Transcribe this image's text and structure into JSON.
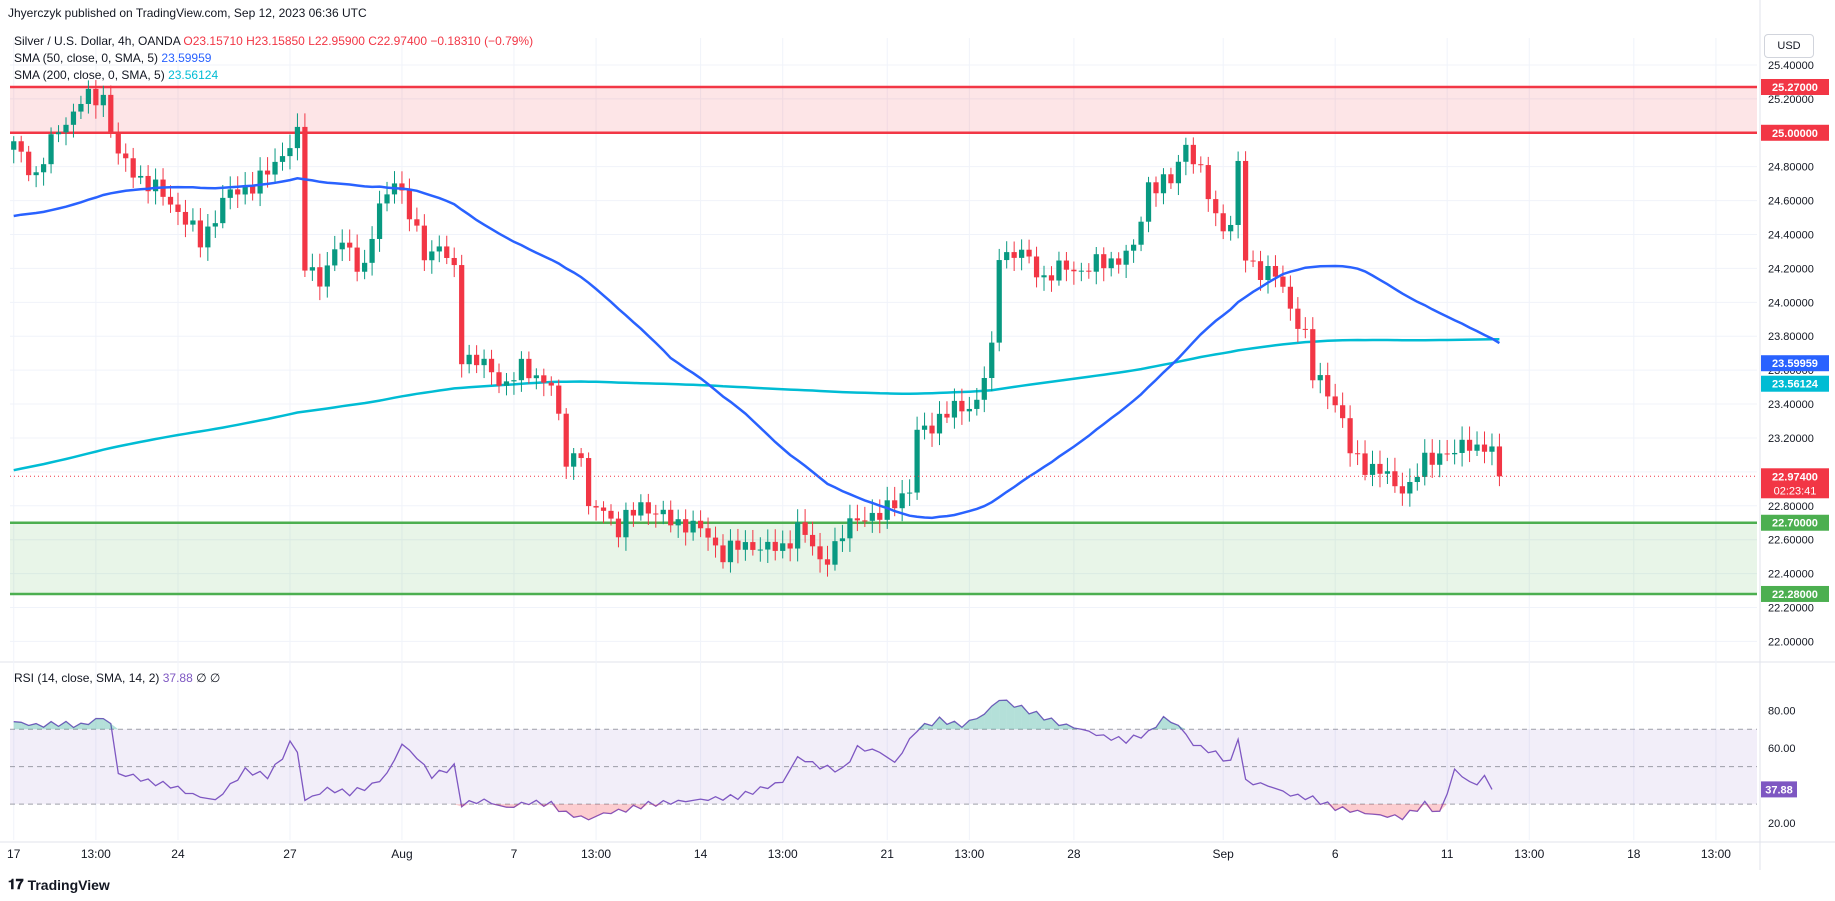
{
  "header": {
    "publisher_line": "Jhyerczyk published on TradingView.com, Sep 12, 2023 06:36 UTC",
    "symbol_line": "Silver / U.S. Dollar, 4h, OANDA",
    "ohlc_o": "O23.15710",
    "ohlc_h": "H23.15850",
    "ohlc_l": "L22.95900",
    "ohlc_c": "C22.97400",
    "ohlc_change": "−0.18310 (−0.79%)",
    "sma50_label": "SMA (50, close, 0, SMA, 5)",
    "sma50_value": "23.59959",
    "sma200_label": "SMA (200, close, 0, SMA, 5)",
    "sma200_value": "23.56124",
    "rsi_label": "RSI (14, close, SMA, 14, 2)",
    "rsi_value": "37.88",
    "rsi_extra": "∅ ∅",
    "currency": "USD",
    "branding": "TradingView"
  },
  "colors": {
    "bull": "#089981",
    "bear": "#f23645",
    "sma50": "#2962ff",
    "sma200": "#00bcd4",
    "resistance": "#f23645",
    "support": "#4caf50",
    "rsi": "#7e57c2"
  },
  "chart_data": {
    "type": "candlestick",
    "symbol": "Silver / U.S. Dollar",
    "timeframe": "4h",
    "y_ticks": [
      "25.40000",
      "25.20000",
      "25.00000",
      "24.80000",
      "24.60000",
      "24.40000",
      "24.20000",
      "24.00000",
      "23.80000",
      "23.60000",
      "23.40000",
      "23.20000",
      "23.00000",
      "22.80000",
      "22.60000",
      "22.40000",
      "22.20000",
      "22.00000"
    ],
    "ylim": [
      21.92,
      25.5
    ],
    "x_ticks": [
      {
        "label": "17",
        "bar": 0
      },
      {
        "label": "13:00",
        "bar": 11
      },
      {
        "label": "24",
        "bar": 22
      },
      {
        "label": "27",
        "bar": 37
      },
      {
        "label": "Aug",
        "bar": 52
      },
      {
        "label": "7",
        "bar": 67
      },
      {
        "label": "13:00",
        "bar": 78
      },
      {
        "label": "14",
        "bar": 92
      },
      {
        "label": "13:00",
        "bar": 103
      },
      {
        "label": "21",
        "bar": 117
      },
      {
        "label": "13:00",
        "bar": 128
      },
      {
        "label": "28",
        "bar": 142
      },
      {
        "label": "Sep",
        "bar": 162
      },
      {
        "label": "6",
        "bar": 177
      },
      {
        "label": "11",
        "bar": 192
      },
      {
        "label": "13:00",
        "bar": 203
      },
      {
        "label": "18",
        "bar": 217
      },
      {
        "label": "13:00",
        "bar": 228
      }
    ],
    "total_slots": 234,
    "zones": [
      {
        "name": "resistance",
        "from": 25.0,
        "to": 25.27,
        "label_top": "25.27000",
        "label_bottom": "25.00000"
      },
      {
        "name": "support",
        "from": 22.28,
        "to": 22.7,
        "label_top": "22.70000",
        "label_bottom": "22.28000"
      }
    ],
    "price_labels": [
      {
        "value": 23.59959,
        "text": "23.59959",
        "series": "sma50"
      },
      {
        "value": 23.56124,
        "text": "23.56124",
        "series": "sma200"
      },
      {
        "value": 22.974,
        "text": "22.97400",
        "sub": "02:23:41",
        "series": "last"
      }
    ],
    "close_anchors": [
      [
        0,
        24.92
      ],
      [
        3,
        24.75
      ],
      [
        6,
        25.02
      ],
      [
        9,
        25.18
      ],
      [
        12,
        25.22
      ],
      [
        14,
        24.85
      ],
      [
        18,
        24.7
      ],
      [
        22,
        24.55
      ],
      [
        25,
        24.35
      ],
      [
        28,
        24.6
      ],
      [
        31,
        24.68
      ],
      [
        34,
        24.75
      ],
      [
        37,
        24.95
      ],
      [
        38,
        24.98
      ],
      [
        39,
        24.2
      ],
      [
        41,
        24.15
      ],
      [
        44,
        24.35
      ],
      [
        47,
        24.2
      ],
      [
        49,
        24.55
      ],
      [
        51,
        24.75
      ],
      [
        53,
        24.5
      ],
      [
        55,
        24.3
      ],
      [
        57,
        24.32
      ],
      [
        59,
        24.18
      ],
      [
        60,
        23.7
      ],
      [
        63,
        23.62
      ],
      [
        66,
        23.52
      ],
      [
        68,
        23.6
      ],
      [
        70,
        23.58
      ],
      [
        72,
        23.5
      ],
      [
        74,
        23.08
      ],
      [
        76,
        23.12
      ],
      [
        77,
        22.75
      ],
      [
        79,
        22.8
      ],
      [
        81,
        22.65
      ],
      [
        84,
        22.82
      ],
      [
        87,
        22.72
      ],
      [
        90,
        22.7
      ],
      [
        93,
        22.62
      ],
      [
        95,
        22.52
      ],
      [
        97,
        22.55
      ],
      [
        99,
        22.58
      ],
      [
        101,
        22.54
      ],
      [
        103,
        22.55
      ],
      [
        105,
        22.68
      ],
      [
        108,
        22.48
      ],
      [
        110,
        22.55
      ],
      [
        113,
        22.75
      ],
      [
        116,
        22.72
      ],
      [
        118,
        22.85
      ],
      [
        120,
        22.88
      ],
      [
        121,
        23.22
      ],
      [
        124,
        23.32
      ],
      [
        127,
        23.38
      ],
      [
        129,
        23.42
      ],
      [
        131,
        23.7
      ],
      [
        132,
        24.3
      ],
      [
        135,
        24.28
      ],
      [
        138,
        24.15
      ],
      [
        141,
        24.2
      ],
      [
        144,
        24.2
      ],
      [
        147,
        24.25
      ],
      [
        150,
        24.3
      ],
      [
        152,
        24.7
      ],
      [
        155,
        24.7
      ],
      [
        157,
        24.95
      ],
      [
        159,
        24.75
      ],
      [
        161,
        24.5
      ],
      [
        163,
        24.45
      ],
      [
        164,
        24.8
      ],
      [
        165,
        24.25
      ],
      [
        167,
        24.2
      ],
      [
        169,
        24.15
      ],
      [
        171,
        23.98
      ],
      [
        173,
        23.8
      ],
      [
        174,
        23.55
      ],
      [
        176,
        23.5
      ],
      [
        178,
        23.3
      ],
      [
        179,
        23.1
      ],
      [
        181,
        23.05
      ],
      [
        183,
        23.0
      ],
      [
        185,
        22.92
      ],
      [
        187,
        22.92
      ],
      [
        189,
        23.05
      ],
      [
        191,
        23.12
      ],
      [
        193,
        23.1
      ],
      [
        195,
        23.18
      ],
      [
        196,
        23.15
      ],
      [
        198,
        23.15
      ]
    ],
    "last_close": 22.974,
    "rsi": {
      "ylim": [
        13,
        92
      ],
      "y_ticks": [
        "80.00",
        "60.00",
        "20.00"
      ],
      "levels": [
        70,
        50,
        30
      ],
      "current": 37.88,
      "anchors": [
        [
          0,
          74
        ],
        [
          3,
          72
        ],
        [
          6,
          73
        ],
        [
          9,
          72
        ],
        [
          11,
          75
        ],
        [
          12,
          76
        ],
        [
          13,
          73
        ],
        [
          14,
          46
        ],
        [
          16,
          45
        ],
        [
          18,
          42
        ],
        [
          21,
          40
        ],
        [
          24,
          35
        ],
        [
          27,
          32
        ],
        [
          29,
          40
        ],
        [
          31,
          48
        ],
        [
          34,
          45
        ],
        [
          36,
          55
        ],
        [
          37,
          63
        ],
        [
          38,
          58
        ],
        [
          39,
          32
        ],
        [
          42,
          38
        ],
        [
          45,
          36
        ],
        [
          48,
          40
        ],
        [
          50,
          46
        ],
        [
          52,
          62
        ],
        [
          54,
          55
        ],
        [
          56,
          45
        ],
        [
          59,
          50
        ],
        [
          60,
          30
        ],
        [
          63,
          32
        ],
        [
          66,
          28
        ],
        [
          69,
          31
        ],
        [
          72,
          30
        ],
        [
          74,
          25
        ],
        [
          77,
          22
        ],
        [
          79,
          25
        ],
        [
          82,
          27
        ],
        [
          85,
          30
        ],
        [
          88,
          31
        ],
        [
          91,
          32
        ],
        [
          94,
          33
        ],
        [
          97,
          34
        ],
        [
          100,
          38
        ],
        [
          103,
          42
        ],
        [
          105,
          55
        ],
        [
          108,
          50
        ],
        [
          111,
          48
        ],
        [
          113,
          60
        ],
        [
          116,
          58
        ],
        [
          118,
          52
        ],
        [
          121,
          70
        ],
        [
          124,
          75
        ],
        [
          127,
          72
        ],
        [
          130,
          78
        ],
        [
          132,
          86
        ],
        [
          134,
          83
        ],
        [
          137,
          78
        ],
        [
          140,
          73
        ],
        [
          143,
          70
        ],
        [
          146,
          66
        ],
        [
          149,
          64
        ],
        [
          152,
          68
        ],
        [
          154,
          76
        ],
        [
          156,
          72
        ],
        [
          158,
          62
        ],
        [
          161,
          57
        ],
        [
          163,
          52
        ],
        [
          164,
          66
        ],
        [
          165,
          42
        ],
        [
          168,
          40
        ],
        [
          171,
          35
        ],
        [
          174,
          33
        ],
        [
          177,
          28
        ],
        [
          180,
          26
        ],
        [
          183,
          24
        ],
        [
          186,
          23
        ],
        [
          189,
          30
        ],
        [
          191,
          25
        ],
        [
          193,
          48
        ],
        [
          195,
          42
        ],
        [
          196,
          40
        ],
        [
          197,
          46
        ],
        [
          198,
          38
        ]
      ]
    }
  }
}
